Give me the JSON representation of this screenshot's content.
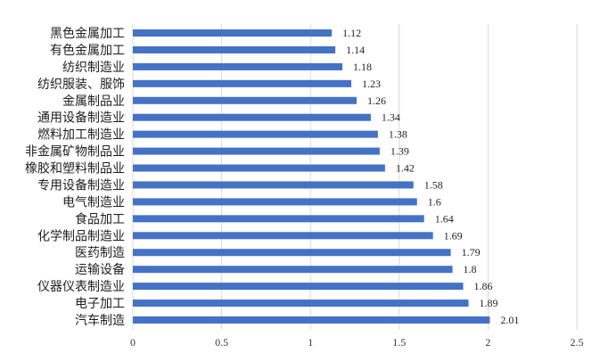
{
  "chart_data": {
    "type": "bar",
    "orientation": "horizontal",
    "categories": [
      "黑色金属加工",
      "有色金属加工",
      "纺织制造业",
      "纺织服装、服饰",
      "金属制品业",
      "通用设备制造业",
      "燃料加工制造业",
      "非金属矿物制品业",
      "橡胶和塑料制品业",
      "专用设备制造业",
      "电气制造业",
      "食品加工",
      "化学制品制造业",
      "医药制造",
      "运输设备",
      "仪器仪表制造业",
      "电子加工",
      "汽车制造"
    ],
    "values": [
      1.12,
      1.14,
      1.18,
      1.23,
      1.26,
      1.34,
      1.38,
      1.39,
      1.42,
      1.58,
      1.6,
      1.64,
      1.69,
      1.79,
      1.8,
      1.86,
      1.89,
      2.01
    ],
    "value_labels": [
      "1.12",
      "1.14",
      "1.18",
      "1.23",
      "1.26",
      "1.34",
      "1.38",
      "1.39",
      "1.42",
      "1.58",
      "1.6",
      "1.64",
      "1.69",
      "1.79",
      "1.8",
      "1.86",
      "1.89",
      "2.01"
    ],
    "xlim": [
      0,
      2.5
    ],
    "x_ticks": [
      "0",
      "0.5",
      "1",
      "1.5",
      "2",
      "2.5"
    ],
    "x_tick_values": [
      0,
      0.5,
      1,
      1.5,
      2,
      2.5
    ],
    "grid": "vertical",
    "bar_color": "#4472C4",
    "grid_color": "#d9d9d9"
  }
}
